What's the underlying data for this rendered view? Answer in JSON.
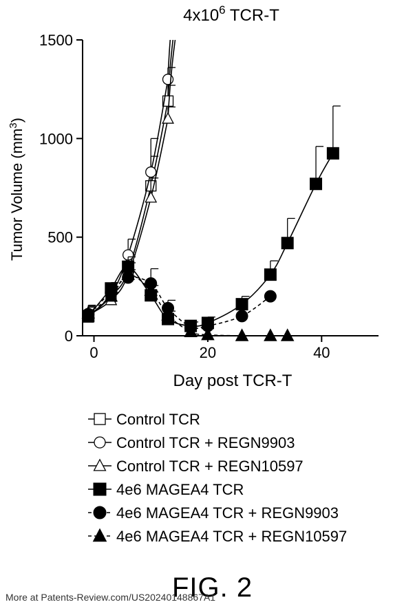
{
  "chart_data": {
    "type": "line",
    "title_main": "4x10",
    "title_sup": "6",
    "title_suffix": " TCR-T",
    "xlabel": "Day post  TCR-T",
    "ylabel_main": "Tumor Volume (mm",
    "ylabel_sup": "3",
    "ylabel_suffix": ")",
    "xlim": [
      -2,
      50
    ],
    "ylim": [
      0,
      1500
    ],
    "xticks": [
      0,
      20,
      40
    ],
    "yticks": [
      0,
      500,
      1000,
      1500
    ],
    "series": [
      {
        "name": "Control TCR",
        "marker": "square",
        "filled": false,
        "dashed": false,
        "x": [
          -1,
          3,
          6,
          10,
          13
        ],
        "y": [
          95,
          200,
          330,
          760,
          1190
        ],
        "err": [
          60,
          40,
          80,
          150,
          80
        ],
        "curve": [
          [
            13,
            1190
          ],
          [
            15.0,
            1720
          ]
        ]
      },
      {
        "name": "Control TCR + REGN9903",
        "marker": "circle",
        "filled": false,
        "dashed": false,
        "x": [
          -1,
          3,
          6,
          10,
          13
        ],
        "y": [
          100,
          210,
          410,
          830,
          1300
        ],
        "err": [
          50,
          40,
          80,
          170,
          60
        ],
        "curve": [
          [
            13,
            1300
          ],
          [
            14.2,
            1720
          ]
        ]
      },
      {
        "name": "Control TCR + REGN10597",
        "marker": "triangle",
        "filled": false,
        "dashed": false,
        "x": [
          -1,
          3,
          6,
          10,
          13
        ],
        "y": [
          105,
          180,
          310,
          700,
          1100
        ],
        "err": [
          40,
          40,
          60,
          100,
          60
        ],
        "curve": [
          [
            13,
            1100
          ],
          [
            15.5,
            1720
          ]
        ]
      },
      {
        "name": "4e6 MAGEA4 TCR",
        "marker": "square",
        "filled": true,
        "dashed": false,
        "x": [
          -1,
          3,
          6,
          10,
          13,
          17,
          20,
          26,
          31,
          34,
          39,
          42
        ],
        "y": [
          100,
          240,
          350,
          205,
          85,
          50,
          65,
          160,
          310,
          470,
          770,
          925
        ],
        "err": [
          50,
          30,
          50,
          50,
          40,
          20,
          30,
          40,
          70,
          125,
          190,
          240
        ]
      },
      {
        "name": "4e6 MAGEA4 TCR + REGN9903",
        "marker": "circle",
        "filled": true,
        "dashed": true,
        "x": [
          -1,
          3,
          6,
          10,
          13,
          17,
          20,
          26,
          31
        ],
        "y": [
          110,
          220,
          295,
          265,
          140,
          45,
          50,
          100,
          200
        ],
        "err": [
          0,
          30,
          40,
          75,
          40,
          0,
          0,
          0,
          0
        ]
      },
      {
        "name": "4e6 MAGEA4 TCR + REGN10597",
        "marker": "triangle",
        "filled": true,
        "dashed": true,
        "x": [
          -1,
          3,
          6,
          10,
          13,
          17,
          20,
          26,
          31,
          34
        ],
        "y": [
          115,
          200,
          310,
          230,
          105,
          20,
          5,
          0,
          0,
          0
        ],
        "err": [
          0,
          0,
          0,
          0,
          0,
          0,
          0,
          0,
          0,
          0
        ]
      }
    ]
  },
  "figure_label": "FIG. 2",
  "footer_text": "More at Patents-Review.com/US20240148867A1"
}
